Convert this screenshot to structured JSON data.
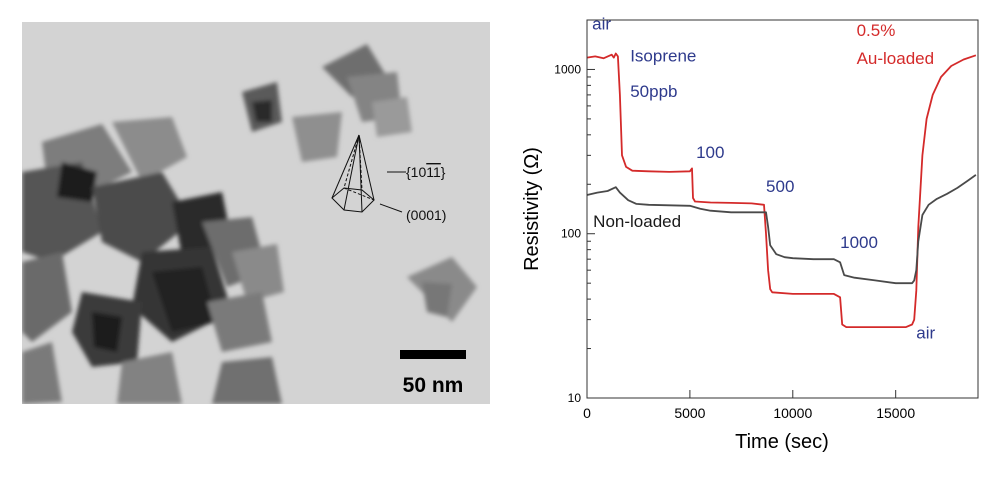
{
  "micrograph": {
    "scale_bar_label": "50 nm",
    "facet_label_side": "{10",
    "facet_label_bar": "11",
    "facet_label_close": "}",
    "facet_label_base": "(0001)"
  },
  "chart_data": {
    "type": "line",
    "xlabel": "Time (sec)",
    "ylabel": "Resistivity (Ω)",
    "xlim": [
      0,
      19000
    ],
    "ylim": [
      10,
      2000
    ],
    "yscale": "log",
    "xticks": [
      0,
      5000,
      10000,
      15000
    ],
    "yticks": [
      10,
      100,
      1000
    ],
    "xtick_labels": [
      "0",
      "5000",
      "10000",
      "15000"
    ],
    "ytick_labels": [
      "10",
      "100",
      "1000"
    ],
    "series": [
      {
        "name": "0.5% Au-loaded",
        "color": "#d42a2a",
        "x": [
          0,
          400,
          800,
          1200,
          1300,
          1400,
          1500,
          1600,
          1700,
          1900,
          2200,
          3000,
          4000,
          5000,
          5100,
          5150,
          5250,
          6000,
          7000,
          8000,
          8600,
          8700,
          8800,
          8900,
          9000,
          10000,
          11000,
          12000,
          12300,
          12400,
          12600,
          13500,
          14500,
          15500,
          15800,
          15900,
          16000,
          16100,
          16300,
          16500,
          16800,
          17200,
          17700,
          18300,
          18900
        ],
        "y": [
          1180,
          1200,
          1170,
          1230,
          1180,
          1250,
          1200,
          700,
          300,
          255,
          242,
          240,
          238,
          240,
          250,
          165,
          157,
          155,
          154,
          153,
          150,
          100,
          60,
          46,
          44,
          43,
          43,
          43,
          41,
          28,
          27,
          27,
          27,
          27,
          28,
          30,
          45,
          110,
          300,
          500,
          700,
          900,
          1050,
          1150,
          1220
        ]
      },
      {
        "name": "Non-loaded",
        "color": "#4a4a4a",
        "x": [
          0,
          500,
          1000,
          1400,
          1600,
          2000,
          2400,
          3000,
          4000,
          5000,
          5500,
          6000,
          7000,
          8000,
          8700,
          8800,
          8900,
          9200,
          9600,
          10000,
          11000,
          12000,
          12300,
          12500,
          13000,
          14000,
          15000,
          15800,
          15900,
          16000,
          16100,
          16300,
          16600,
          17000,
          17500,
          18000,
          18500,
          18900
        ],
        "y": [
          172,
          178,
          182,
          192,
          178,
          160,
          152,
          150,
          149,
          148,
          142,
          138,
          135,
          135,
          135,
          110,
          85,
          75,
          72,
          71,
          70,
          70,
          67,
          56,
          54,
          52,
          50,
          50,
          52,
          60,
          90,
          130,
          150,
          163,
          175,
          190,
          210,
          228
        ]
      }
    ],
    "annotations": [
      {
        "text": "air",
        "x": 250,
        "y": 1750,
        "color": "#2e3a8c"
      },
      {
        "text": "Isoprene",
        "x": 2100,
        "y": 1120,
        "color": "#2e3a8c"
      },
      {
        "text": "50ppb",
        "x": 2100,
        "y": 680,
        "color": "#2e3a8c"
      },
      {
        "text": "100",
        "x": 5300,
        "y": 290,
        "color": "#2e3a8c"
      },
      {
        "text": "500",
        "x": 8700,
        "y": 180,
        "color": "#2e3a8c"
      },
      {
        "text": "1000",
        "x": 12300,
        "y": 82,
        "color": "#2e3a8c"
      },
      {
        "text": "air",
        "x": 16000,
        "y": 23,
        "color": "#2e3a8c"
      },
      {
        "text": "0.5%",
        "x": 13100,
        "y": 1600,
        "color": "#d42a2a"
      },
      {
        "text": "Au-loaded",
        "x": 13100,
        "y": 1080,
        "color": "#d42a2a"
      },
      {
        "text": "Non-loaded",
        "x": 300,
        "y": 110,
        "color": "#1a1a1a"
      }
    ]
  }
}
